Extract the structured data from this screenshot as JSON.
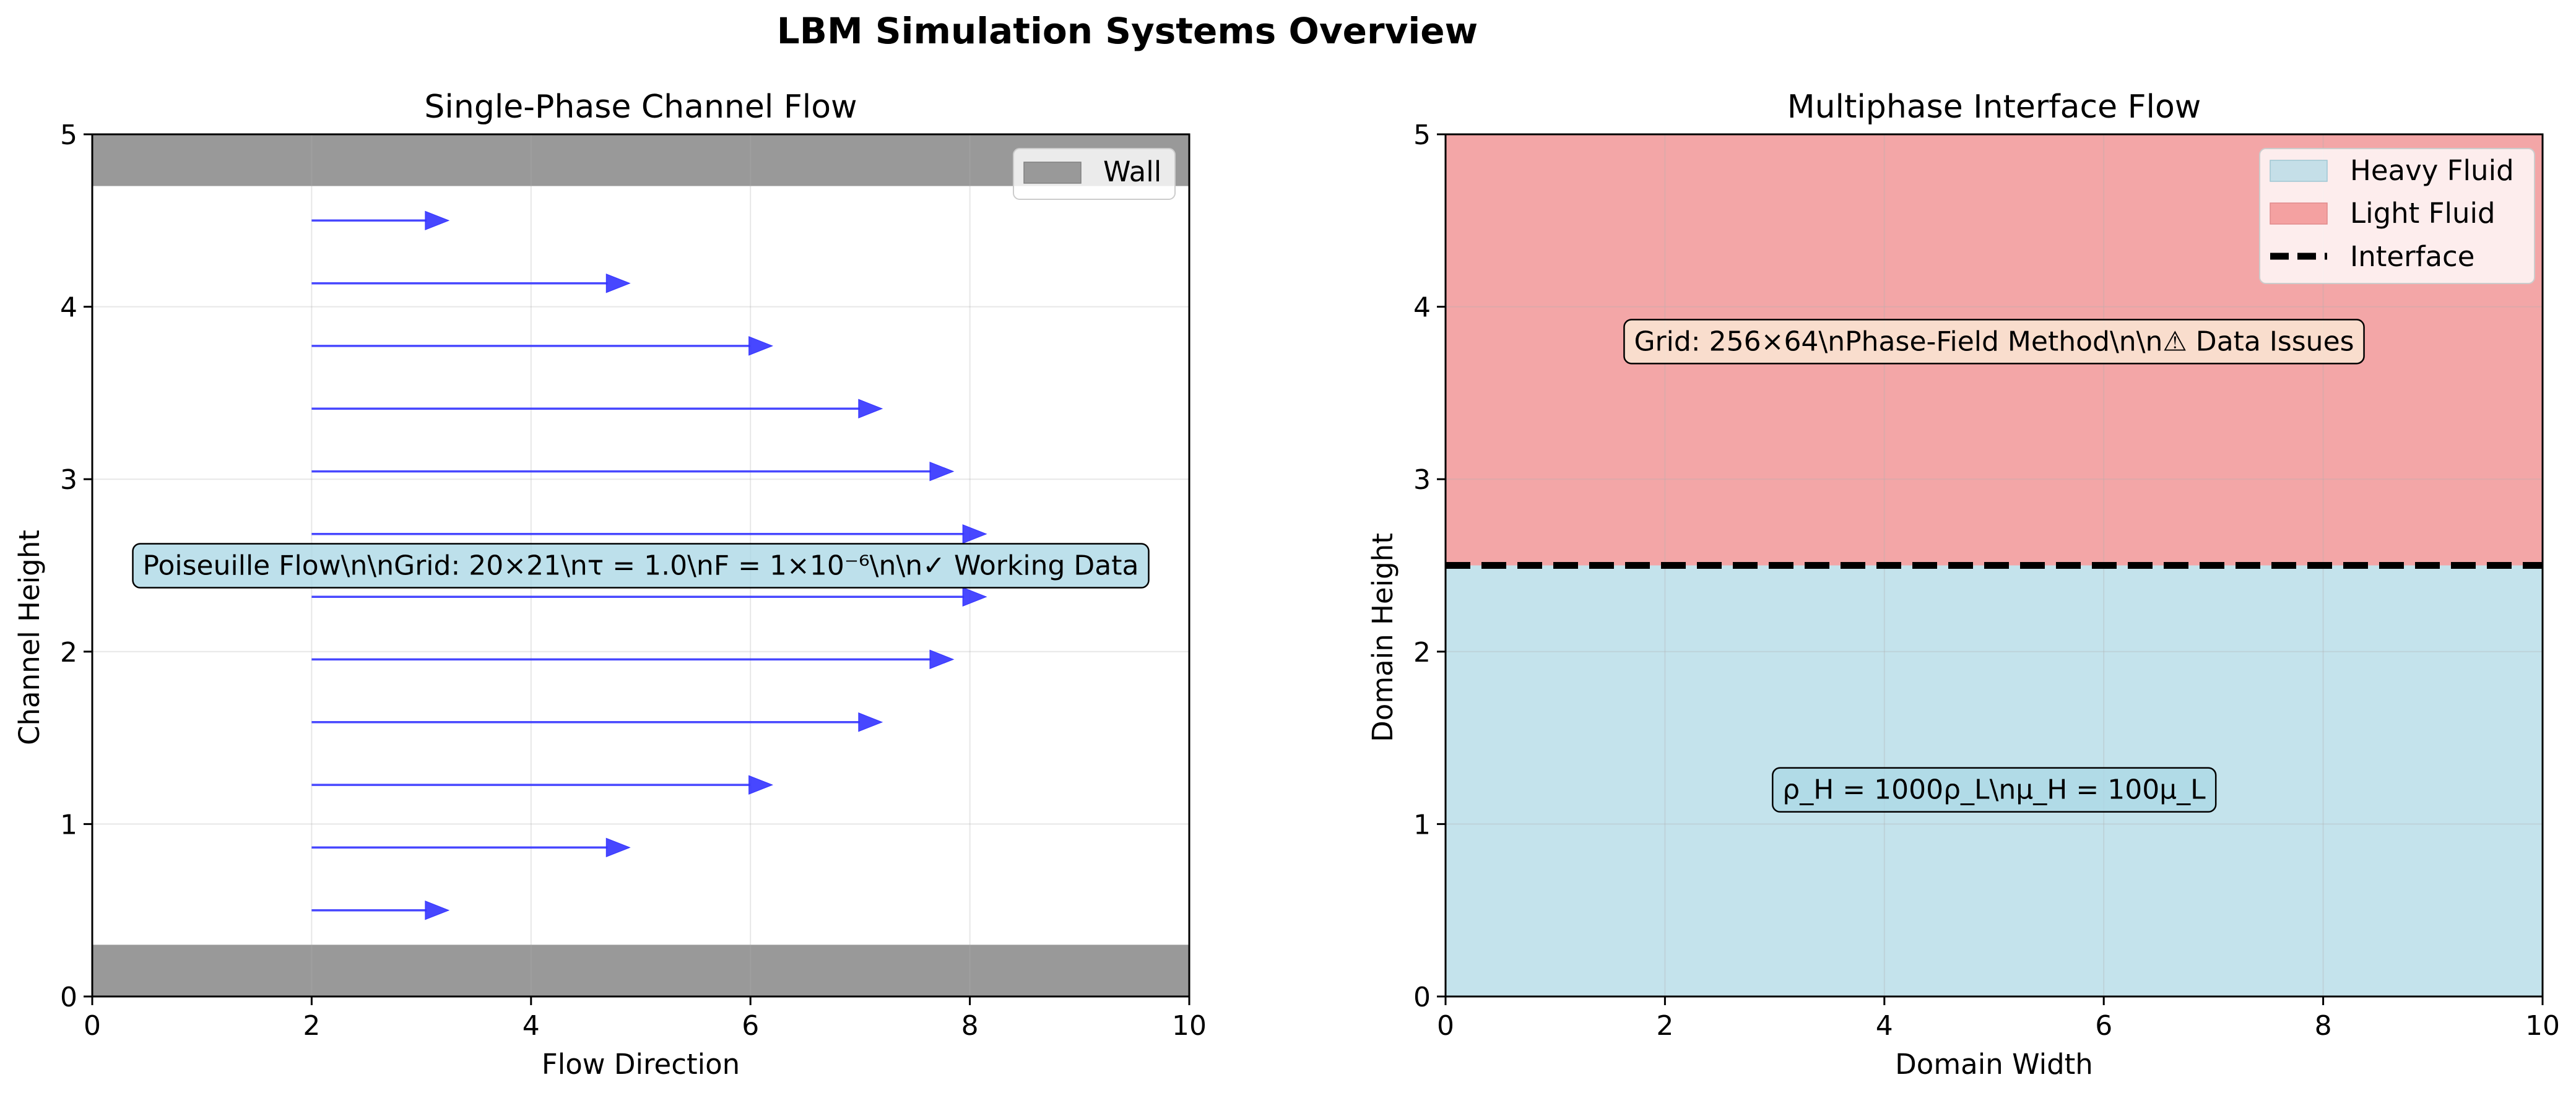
{
  "title": "LBM Simulation Systems Overview",
  "chart_data": [
    {
      "type": "quiver",
      "title": "Single-Phase Channel Flow",
      "xlabel": "Flow Direction",
      "ylabel": "Channel Height",
      "xlim": [
        0,
        10
      ],
      "ylim": [
        0,
        5
      ],
      "xticks": [
        "0",
        "2",
        "4",
        "6",
        "8",
        "10"
      ],
      "yticks": [
        "0",
        "1",
        "2",
        "3",
        "4",
        "5"
      ],
      "grid": true,
      "legend_position": "upper right",
      "walls": [
        {
          "name": "Wall",
          "y0": 0,
          "y1": 0.3,
          "color": "#999999"
        },
        {
          "name": "Wall",
          "y0": 4.7,
          "y1": 5,
          "color": "#999999"
        }
      ],
      "arrow_color": "#3333ff",
      "arrows": [
        {
          "x": 2,
          "y": 0.5,
          "u": 1.25
        },
        {
          "x": 2,
          "y": 0.864,
          "u": 2.9
        },
        {
          "x": 2,
          "y": 1.227,
          "u": 4.2
        },
        {
          "x": 2,
          "y": 1.591,
          "u": 5.2
        },
        {
          "x": 2,
          "y": 1.955,
          "u": 5.85
        },
        {
          "x": 2,
          "y": 2.318,
          "u": 6.15
        },
        {
          "x": 2,
          "y": 2.682,
          "u": 6.15
        },
        {
          "x": 2,
          "y": 3.045,
          "u": 5.85
        },
        {
          "x": 2,
          "y": 3.409,
          "u": 5.2
        },
        {
          "x": 2,
          "y": 3.773,
          "u": 4.2
        },
        {
          "x": 2,
          "y": 4.136,
          "u": 2.9
        },
        {
          "x": 2,
          "y": 4.5,
          "u": 1.25
        }
      ],
      "legend": [
        {
          "label": "Wall",
          "color": "#999999"
        }
      ],
      "annotation": {
        "text": "Poiseuille Flow\\n\\nGrid: 20×21\\nτ = 1.0\\nF = 1×10⁻⁶\\n\\n✓ Working Data",
        "x": 5,
        "y": 2.5,
        "bg": "#add8e6"
      }
    },
    {
      "type": "area",
      "title": "Multiphase Interface Flow",
      "xlabel": "Domain Width",
      "ylabel": "Domain Height",
      "xlim": [
        0,
        10
      ],
      "ylim": [
        0,
        5
      ],
      "xticks": [
        "0",
        "2",
        "4",
        "6",
        "8",
        "10"
      ],
      "yticks": [
        "0",
        "1",
        "2",
        "3",
        "4",
        "5"
      ],
      "grid": true,
      "legend_position": "upper right",
      "regions": [
        {
          "name": "Heavy Fluid",
          "y0": 0,
          "y1": 2.5,
          "color": "#c4e3ec"
        },
        {
          "name": "Light Fluid",
          "y0": 2.5,
          "y1": 5,
          "color": "#f3a6a7"
        }
      ],
      "interface": {
        "name": "Interface",
        "y": 2.5,
        "color": "#000000",
        "style": "dashed"
      },
      "legend": [
        {
          "label": "Heavy Fluid",
          "color": "#add8e6",
          "kind": "patch"
        },
        {
          "label": "Light Fluid",
          "color": "#f08080",
          "kind": "patch"
        },
        {
          "label": "Interface",
          "color": "#000000",
          "kind": "dashed-line"
        }
      ],
      "annotations": [
        {
          "text": "Grid: 256×64\\nPhase-Field Method\\n\\n⚠ Data Issues",
          "x": 5,
          "y": 3.8,
          "bg": "#faebd7"
        },
        {
          "text": "ρ_H = 1000ρ_L\\nμ_H = 100μ_L",
          "x": 5,
          "y": 1.2,
          "bg": "#add8e6"
        }
      ]
    }
  ]
}
